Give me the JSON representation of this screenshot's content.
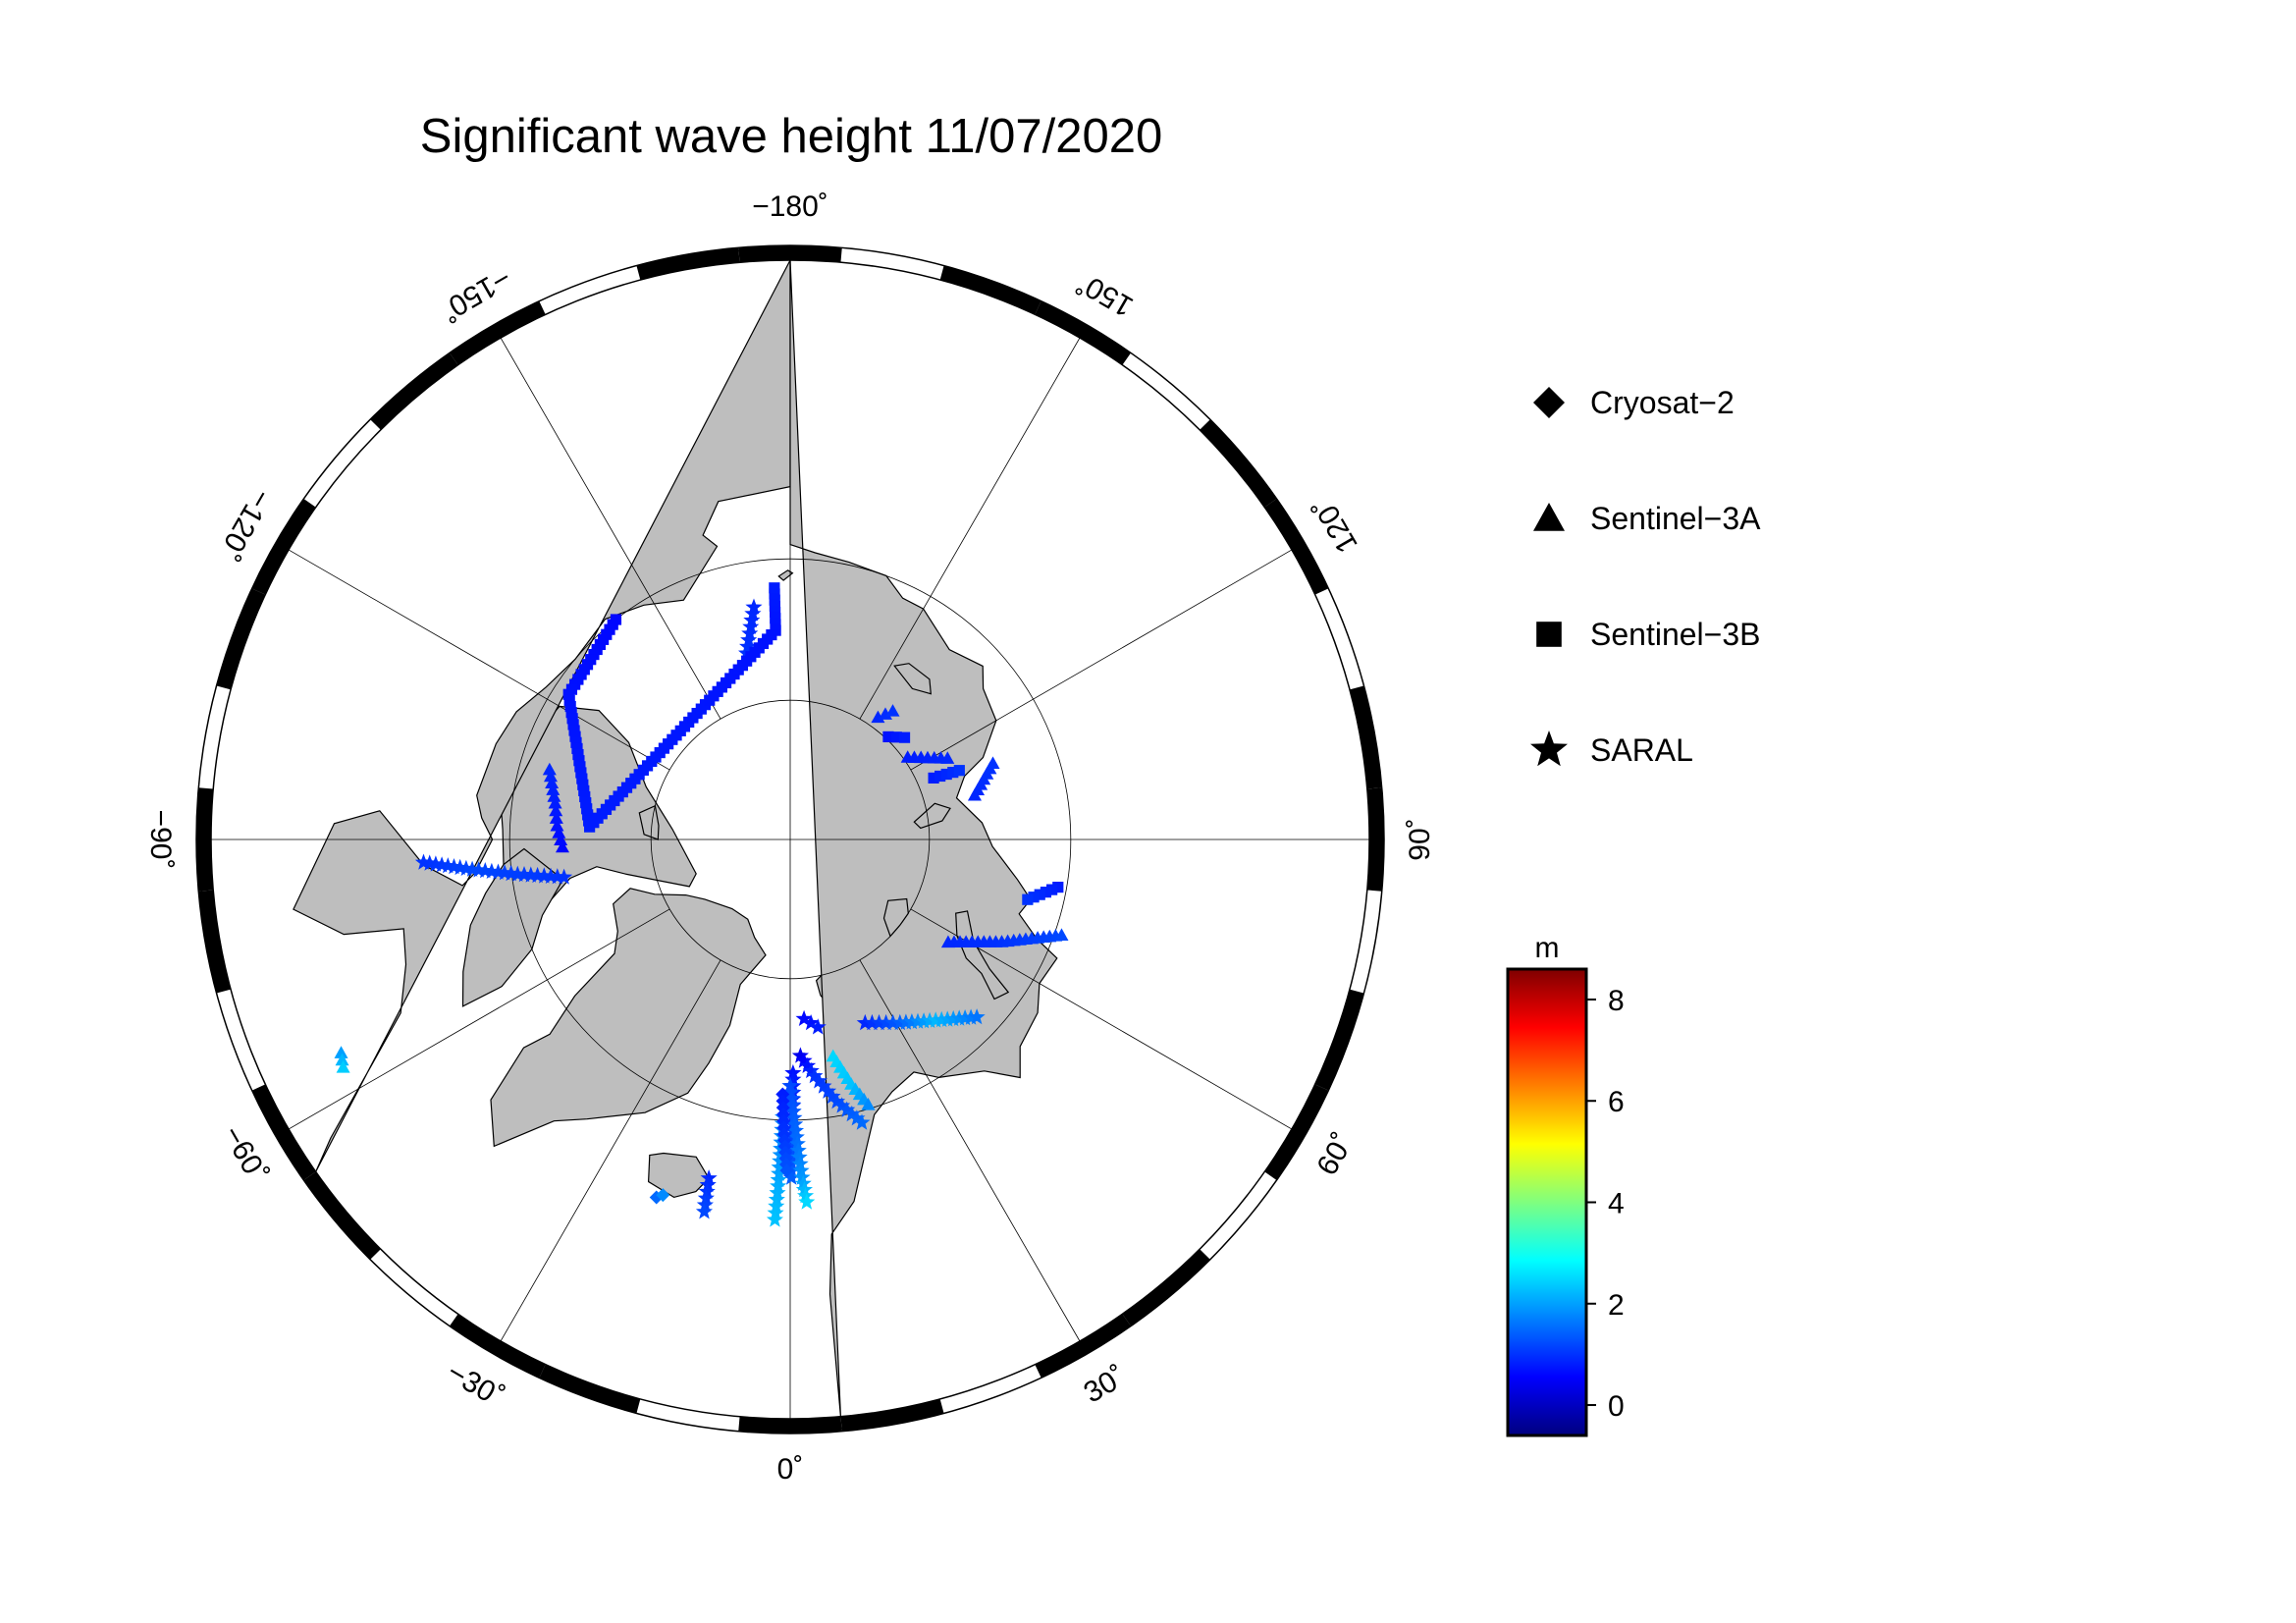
{
  "title": "Significant wave height 11/07/2020",
  "graticule": {
    "longitude_labels": [
      {
        "lon": -180,
        "text": "−180˚"
      },
      {
        "lon": 150,
        "text": "150˚"
      },
      {
        "lon": 120,
        "text": "120˚"
      },
      {
        "lon": 90,
        "text": "90˚"
      },
      {
        "lon": 60,
        "text": "60˚"
      },
      {
        "lon": 30,
        "text": "30˚"
      },
      {
        "lon": 0,
        "text": "0˚"
      },
      {
        "lon": -30,
        "text": "−30˚"
      },
      {
        "lon": -60,
        "text": "−60˚"
      },
      {
        "lon": -90,
        "text": "−90˚"
      },
      {
        "lon": -120,
        "text": "−120˚"
      },
      {
        "lon": -150,
        "text": "−150˚"
      }
    ],
    "meridian_spacing_deg": 30,
    "latitude_circles_deg": [
      70,
      80
    ],
    "frame_band_deg": 10
  },
  "legend": {
    "items": [
      {
        "symbol": "diamond",
        "label": "Cryosat−2"
      },
      {
        "symbol": "triangle",
        "label": "Sentinel−3A"
      },
      {
        "symbol": "square",
        "label": "Sentinel−3B"
      },
      {
        "symbol": "star",
        "label": "SARAL"
      }
    ]
  },
  "colorbar": {
    "unit": "m",
    "min": -0.6,
    "max": 8.6,
    "ticks": [
      {
        "value": 0,
        "label": "0"
      },
      {
        "value": 2,
        "label": "2"
      },
      {
        "value": 4,
        "label": "4"
      },
      {
        "value": 6,
        "label": "6"
      },
      {
        "value": 8,
        "label": "8"
      }
    ],
    "colors": [
      "#00007f",
      "#0000ff",
      "#007fff",
      "#00ffff",
      "#7fff7f",
      "#ffff00",
      "#ff7f00",
      "#ff0000",
      "#7f0000"
    ]
  },
  "colors": {
    "land": "#bebebe",
    "ocean": "#ffffff",
    "outline": "#000000"
  },
  "chart_data": {
    "type": "scatter",
    "projection": "north-polar-stereographic",
    "variable": "significant wave height (m)",
    "tracks": [
      {
        "satellite": "SARAL",
        "symbol": "star",
        "points": [
          {
            "lon": -1.5,
            "lat": 70.2,
            "h": 1.7
          },
          {
            "lon": -1.7,
            "lat": 68.0,
            "h": 1.8
          },
          {
            "lon": -2.0,
            "lat": 65.4,
            "h": 2.1
          },
          {
            "lon": -2.3,
            "lat": 63.1,
            "h": 2.3
          }
        ]
      },
      {
        "satellite": "SARAL",
        "symbol": "star",
        "points": [
          {
            "lon": 0.7,
            "lat": 73.3,
            "h": 0.7
          },
          {
            "lon": 0.6,
            "lat": 71.0,
            "h": 1.0
          },
          {
            "lon": 0.4,
            "lat": 68.4,
            "h": 1.2
          },
          {
            "lon": 0.2,
            "lat": 66.0,
            "h": 1.4
          }
        ]
      },
      {
        "satellite": "SARAL",
        "symbol": "star",
        "points": [
          {
            "lon": 0.0,
            "lat": 72.4,
            "h": 1.2
          },
          {
            "lon": 1.2,
            "lat": 68.8,
            "h": 1.5
          },
          {
            "lon": 2.0,
            "lat": 66.0,
            "h": 1.9
          },
          {
            "lon": 2.6,
            "lat": 64.3,
            "h": 2.5
          }
        ]
      },
      {
        "satellite": "Cryosat-2",
        "symbol": "diamond",
        "points": [
          {
            "lon": -1.7,
            "lat": 71.8,
            "h": 0.8
          },
          {
            "lon": -1.2,
            "lat": 69.0,
            "h": 1.0
          },
          {
            "lon": -0.6,
            "lat": 66.5,
            "h": 1.3
          }
        ]
      },
      {
        "satellite": "SARAL",
        "symbol": "star",
        "points": [
          {
            "lon": 2.7,
            "lat": 74.5,
            "h": 0.4
          },
          {
            "lon": 5.9,
            "lat": 73.0,
            "h": 1.0
          },
          {
            "lon": 10.1,
            "lat": 71.0,
            "h": 1.2
          },
          {
            "lon": 14.2,
            "lat": 69.2,
            "h": 1.5
          }
        ]
      },
      {
        "satellite": "SARAL",
        "symbol": "star",
        "points": [
          {
            "lon": 4.4,
            "lat": 77.1,
            "h": 0.6
          },
          {
            "lon": 8.4,
            "lat": 76.4,
            "h": 0.8
          }
        ]
      },
      {
        "satellite": "Sentinel-3A",
        "symbol": "triangle",
        "points": [
          {
            "lon": 11.2,
            "lat": 74.2,
            "h": 2.5
          },
          {
            "lon": 14.0,
            "lat": 72.0,
            "h": 2.3
          },
          {
            "lon": 16.4,
            "lat": 70.3,
            "h": 1.8
          }
        ]
      },
      {
        "satellite": "SARAL",
        "symbol": "star",
        "points": [
          {
            "lon": 22.2,
            "lat": 75.8,
            "h": 0.9
          },
          {
            "lon": 30.9,
            "lat": 74.7,
            "h": 1.4
          },
          {
            "lon": 38.8,
            "lat": 73.4,
            "h": 2.2
          },
          {
            "lon": 46.4,
            "lat": 71.6,
            "h": 1.6
          }
        ]
      },
      {
        "satellite": "Sentinel-3A",
        "symbol": "triangle",
        "points": [
          {
            "lon": 57.0,
            "lat": 76.5,
            "h": 0.9
          },
          {
            "lon": 64.2,
            "lat": 73.2,
            "h": 1.0
          },
          {
            "lon": 70.6,
            "lat": 69.5,
            "h": 1.2
          }
        ]
      },
      {
        "satellite": "Sentinel-3B",
        "symbol": "square",
        "points": [
          {
            "lon": 79.9,
            "lat": 70.6,
            "h": 0.8
          },
          {
            "lon": 75.8,
            "lat": 72.5,
            "h": 1.0
          }
        ]
      },
      {
        "satellite": "Sentinel-3A",
        "symbol": "triangle",
        "points": [
          {
            "lon": 103.5,
            "lat": 76.4,
            "h": 0.9
          },
          {
            "lon": 110.6,
            "lat": 74.5,
            "h": 1.0
          }
        ]
      },
      {
        "satellite": "Sentinel-3B",
        "symbol": "square",
        "points": [
          {
            "lon": 113.2,
            "lat": 78.8,
            "h": 0.8
          },
          {
            "lon": 112.2,
            "lat": 76.9,
            "h": 1.0
          }
        ]
      },
      {
        "satellite": "Sentinel-3A",
        "symbol": "triangle",
        "points": [
          {
            "lon": 125.0,
            "lat": 79.7,
            "h": 0.8
          },
          {
            "lon": 117.3,
            "lat": 77.3,
            "h": 0.9
          }
        ]
      },
      {
        "satellite": "Sentinel-3B",
        "symbol": "square",
        "points": [
          {
            "lon": 136.3,
            "lat": 79.8,
            "h": 0.7
          },
          {
            "lon": 131.7,
            "lat": 79.0,
            "h": 0.8
          }
        ]
      },
      {
        "satellite": "Sentinel-3A",
        "symbol": "triangle",
        "points": [
          {
            "lon": 144.3,
            "lat": 79.2,
            "h": 0.9
          },
          {
            "lon": 141.4,
            "lat": 78.2,
            "h": 1.0
          }
        ]
      },
      {
        "satellite": "SARAL",
        "symbol": "star",
        "points": [
          {
            "lon": -166.8,
            "lat": 76.3,
            "h": 1.0
          },
          {
            "lon": -171.1,
            "lat": 73.2,
            "h": 0.9
          }
        ]
      },
      {
        "satellite": "Sentinel-3A",
        "symbol": "triangle",
        "points": [
          {
            "lon": -88.1,
            "lat": 73.7,
            "h": 0.6
          },
          {
            "lon": -93.4,
            "lat": 73.3,
            "h": 0.7
          },
          {
            "lon": -98.8,
            "lat": 73.0,
            "h": 0.8
          },
          {
            "lon": -106.2,
            "lat": 72.1,
            "h": 0.9
          }
        ]
      },
      {
        "satellite": "SARAL",
        "symbol": "star",
        "points": [
          {
            "lon": -80.5,
            "lat": 73.6,
            "h": 1.0
          },
          {
            "lon": -82.7,
            "lat": 70.4,
            "h": 1.1
          },
          {
            "lon": -84.6,
            "lat": 67.3,
            "h": 1.2
          },
          {
            "lon": -86.4,
            "lat": 64.0,
            "h": 1.0
          }
        ]
      },
      {
        "satellite": "Sentinel-3A",
        "symbol": "triangle",
        "points": [
          {
            "lon": -64.6,
            "lat": 55.3,
            "h": 2.0
          },
          {
            "lon": -63.0,
            "lat": 55.0,
            "h": 2.4
          }
        ]
      },
      {
        "satellite": "Cryosat-2",
        "symbol": "diamond",
        "points": [
          {
            "lon": -20.5,
            "lat": 63.0,
            "h": 1.5
          },
          {
            "lon": -19.7,
            "lat": 63.3,
            "h": 1.8
          }
        ]
      },
      {
        "satellite": "SARAL",
        "symbol": "star",
        "points": [
          {
            "lon": -13.5,
            "lat": 65.3,
            "h": 0.9
          },
          {
            "lon": -13.0,
            "lat": 63.0,
            "h": 1.2
          }
        ]
      },
      {
        "satellite": "Sentinel-3B",
        "symbol": "square",
        "points": [
          {
            "lon": -141.6,
            "lat": 70.0,
            "h": 0.6
          },
          {
            "lon": -123.2,
            "lat": 71.1,
            "h": 0.7
          },
          {
            "lon": -93.6,
            "lat": 75.6,
            "h": 0.8
          },
          {
            "lon": -176.0,
            "lat": 75.0,
            "h": 0.7
          },
          {
            "lon": -176.4,
            "lat": 72.0,
            "h": 0.8
          }
        ]
      }
    ]
  }
}
